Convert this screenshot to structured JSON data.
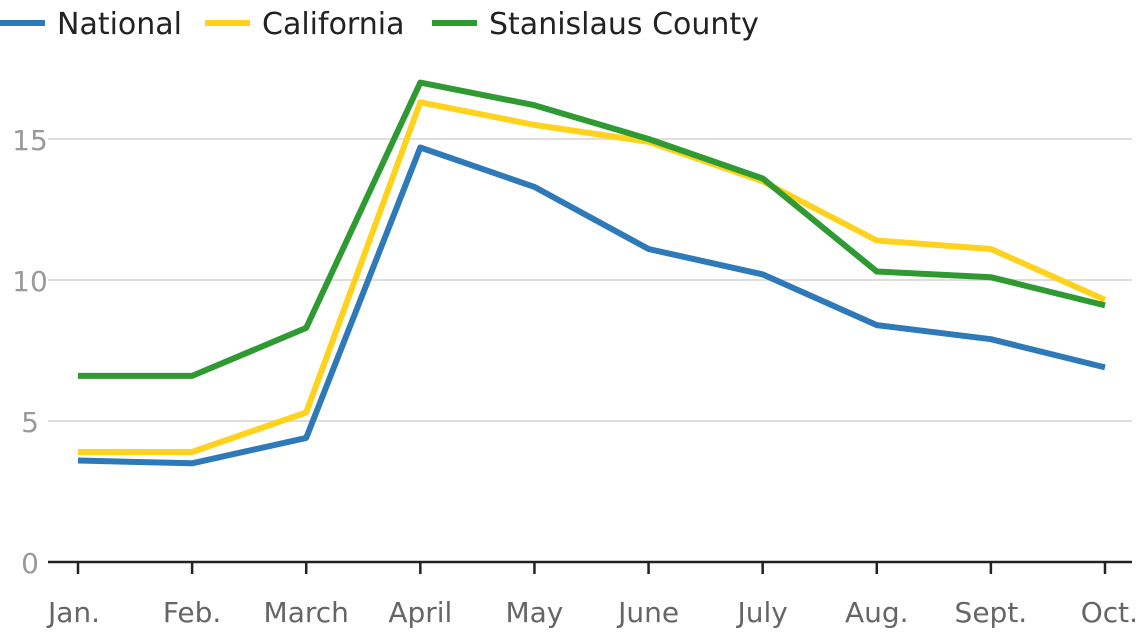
{
  "chart_data": {
    "type": "line",
    "categories": [
      "Jan.",
      "Feb.",
      "March",
      "April",
      "May",
      "June",
      "July",
      "Aug.",
      "Sept.",
      "Oct."
    ],
    "series": [
      {
        "name": "National",
        "color": "#2e7ab8",
        "values": [
          3.6,
          3.5,
          4.4,
          14.7,
          13.3,
          11.1,
          10.2,
          8.4,
          7.9,
          6.9
        ]
      },
      {
        "name": "California",
        "color": "#ffd21e",
        "values": [
          3.9,
          3.9,
          5.3,
          16.3,
          15.5,
          14.9,
          13.5,
          11.4,
          11.1,
          9.3
        ]
      },
      {
        "name": "Stanislaus County",
        "color": "#2f9a32",
        "values": [
          6.6,
          6.6,
          8.3,
          17.0,
          16.2,
          15.0,
          13.6,
          10.3,
          10.1,
          9.1
        ]
      }
    ],
    "yticks": [
      "0",
      "5",
      "10",
      "15"
    ],
    "ylim": [
      0,
      18
    ],
    "grid": true,
    "legend": "top-left",
    "title": "",
    "xlabel": "",
    "ylabel": ""
  }
}
